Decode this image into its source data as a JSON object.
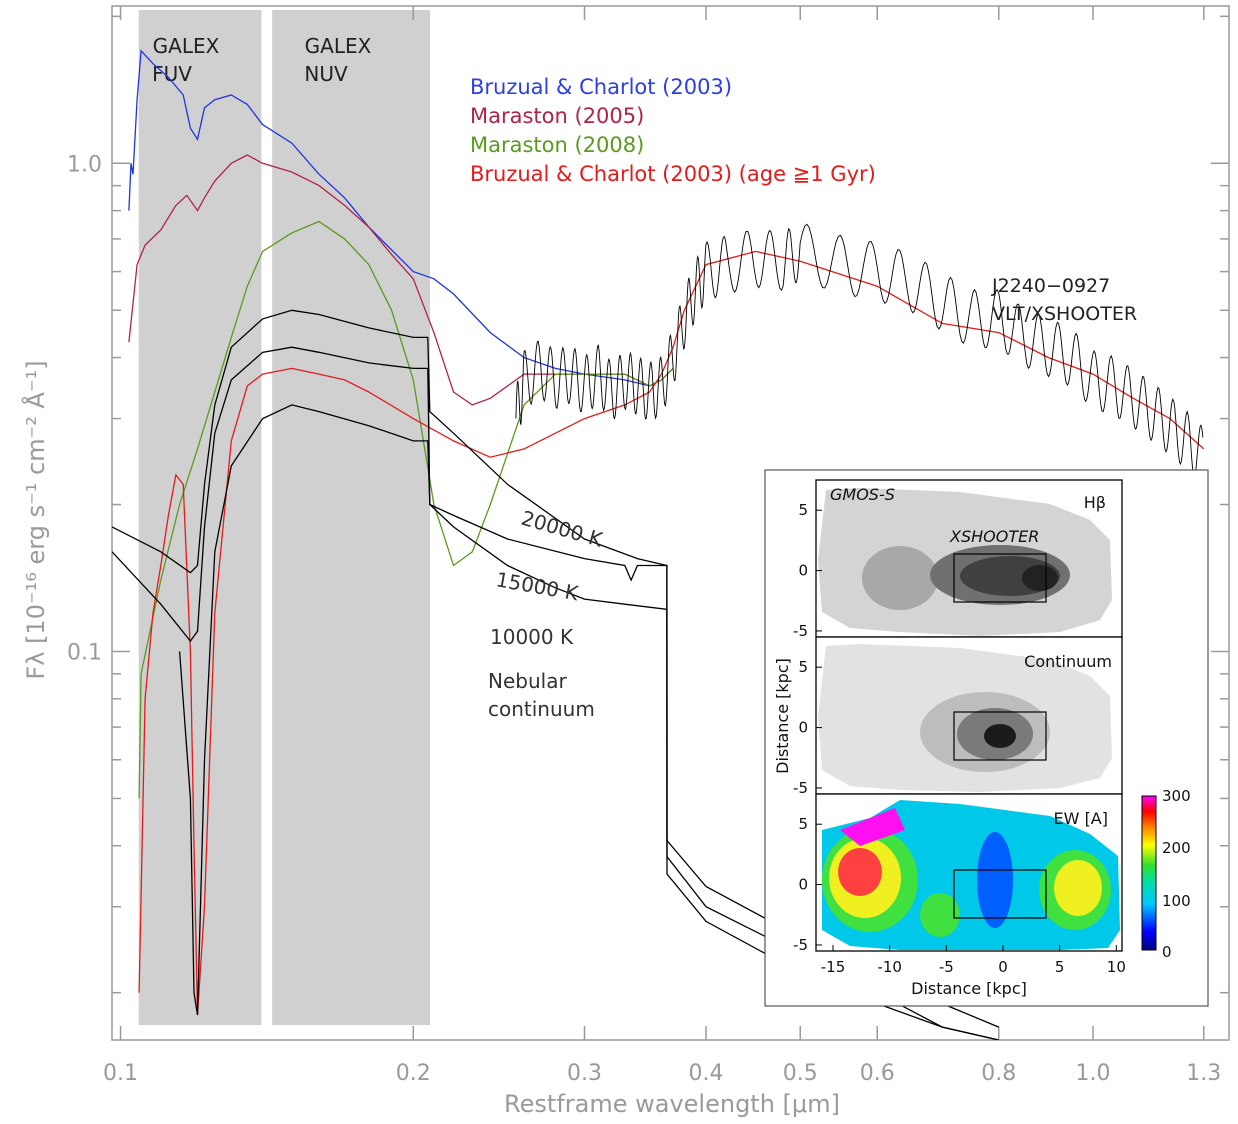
{
  "chart_data": [
    {
      "type": "line",
      "xlabel": "Restframe wavelength [μm]",
      "ylabel": "Fλ [10⁻¹⁶ erg s⁻¹ cm⁻² Å⁻¹]",
      "xscale": "log",
      "yscale": "log",
      "xlim": [
        0.098,
        1.38
      ],
      "ylim": [
        0.016,
        2.1
      ],
      "x_ticks": [
        0.1,
        0.2,
        0.3,
        0.4,
        0.5,
        0.6,
        0.8,
        1.0,
        1.3
      ],
      "x_tick_labels": [
        "0.1",
        "0.2",
        "0.3",
        "0.4",
        "0.5",
        "0.6",
        "0.8",
        "1.0",
        "1.3"
      ],
      "y_ticks": [
        0.1,
        1.0
      ],
      "y_tick_labels": [
        "0.1",
        "1.0"
      ],
      "bands": [
        {
          "label_line1": "GALEX",
          "label_line2": "FUV",
          "x_range": [
            0.1044,
            0.1396
          ],
          "color": "#d0d0d0"
        },
        {
          "label_line1": "GALEX",
          "label_line2": "NUV",
          "x_range": [
            0.1432,
            0.2081
          ],
          "color": "#d0d0d0"
        }
      ],
      "legend_position": "top-center",
      "series": [
        {
          "name": "Bruzual & Charlot (2003)",
          "color": "#1f35e0",
          "x": [
            0.102,
            0.1025,
            0.103,
            0.104,
            0.105,
            0.108,
            0.112,
            0.116,
            0.118,
            0.12,
            0.122,
            0.125,
            0.13,
            0.135,
            0.14,
            0.15,
            0.16,
            0.17,
            0.18,
            0.2,
            0.21,
            0.22,
            0.24,
            0.26,
            0.28,
            0.3,
            0.33,
            0.35,
            0.36,
            0.37
          ],
          "y": [
            0.8,
            1.0,
            0.95,
            1.35,
            1.7,
            1.6,
            1.5,
            1.38,
            1.18,
            1.12,
            1.3,
            1.35,
            1.38,
            1.32,
            1.2,
            1.1,
            0.95,
            0.85,
            0.74,
            0.6,
            0.58,
            0.54,
            0.45,
            0.4,
            0.38,
            0.37,
            0.36,
            0.35,
            0.36,
            0.38
          ]
        },
        {
          "name": "Maraston (2005)",
          "color": "#b0234a",
          "x": [
            0.102,
            0.104,
            0.106,
            0.11,
            0.114,
            0.117,
            0.12,
            0.122,
            0.125,
            0.13,
            0.135,
            0.14,
            0.15,
            0.16,
            0.17,
            0.18,
            0.19,
            0.2,
            0.21,
            0.22,
            0.23,
            0.24,
            0.26,
            0.28,
            0.3,
            0.33,
            0.35,
            0.36,
            0.37
          ],
          "y": [
            0.43,
            0.62,
            0.68,
            0.73,
            0.82,
            0.86,
            0.8,
            0.85,
            0.92,
            1.0,
            1.04,
            1.0,
            0.96,
            0.9,
            0.82,
            0.74,
            0.65,
            0.58,
            0.45,
            0.34,
            0.32,
            0.33,
            0.37,
            0.37,
            0.37,
            0.37,
            0.35,
            0.36,
            0.38
          ]
        },
        {
          "name": "Maraston (2008)",
          "color": "#5a9a1e",
          "x": [
            0.1045,
            0.105,
            0.11,
            0.115,
            0.12,
            0.125,
            0.13,
            0.135,
            0.14,
            0.15,
            0.16,
            0.17,
            0.18,
            0.19,
            0.2,
            0.21,
            0.22,
            0.23,
            0.24,
            0.26,
            0.28,
            0.3,
            0.33,
            0.35,
            0.36,
            0.37
          ],
          "y": [
            0.05,
            0.09,
            0.14,
            0.2,
            0.26,
            0.34,
            0.44,
            0.56,
            0.66,
            0.72,
            0.76,
            0.7,
            0.62,
            0.5,
            0.36,
            0.2,
            0.15,
            0.16,
            0.2,
            0.32,
            0.37,
            0.37,
            0.37,
            0.35,
            0.36,
            0.38
          ]
        },
        {
          "name": "Bruzual & Charlot (2003) (age ≥1 Gyr)",
          "color": "#e51b1b",
          "x": [
            0.1045,
            0.106,
            0.108,
            0.11,
            0.112,
            0.114,
            0.116,
            0.118,
            0.119,
            0.12,
            0.122,
            0.125,
            0.13,
            0.135,
            0.14,
            0.15,
            0.16,
            0.17,
            0.18,
            0.2,
            0.22,
            0.24,
            0.26,
            0.28,
            0.3,
            0.33,
            0.35,
            0.36,
            0.37,
            0.38,
            0.4,
            0.45,
            0.5,
            0.6,
            0.7,
            0.8,
            0.9,
            1.0,
            1.1,
            1.2,
            1.3
          ],
          "y": [
            0.02,
            0.08,
            0.12,
            0.15,
            0.19,
            0.23,
            0.22,
            0.1,
            0.04,
            0.018,
            0.03,
            0.12,
            0.27,
            0.35,
            0.37,
            0.38,
            0.37,
            0.36,
            0.34,
            0.3,
            0.27,
            0.25,
            0.26,
            0.28,
            0.3,
            0.32,
            0.34,
            0.37,
            0.42,
            0.5,
            0.62,
            0.66,
            0.63,
            0.56,
            0.47,
            0.45,
            0.4,
            0.37,
            0.33,
            0.3,
            0.26
          ]
        },
        {
          "name": "J2240−0927 VLT/XSHOOTER",
          "color": "#000000",
          "x": [
            0.255,
            0.26,
            0.27,
            0.28,
            0.29,
            0.3,
            0.31,
            0.32,
            0.33,
            0.34,
            0.35,
            0.36,
            0.37,
            0.38,
            0.39,
            0.4,
            0.42,
            0.45,
            0.48,
            0.5,
            0.55,
            0.6,
            0.65,
            0.7,
            0.75,
            0.8,
            0.85,
            0.9,
            0.95,
            1.0,
            1.05,
            1.1,
            1.15,
            1.2,
            1.25,
            1.3
          ],
          "y": [
            0.3,
            0.36,
            0.38,
            0.36,
            0.37,
            0.35,
            0.37,
            0.34,
            0.36,
            0.35,
            0.34,
            0.35,
            0.4,
            0.48,
            0.55,
            0.6,
            0.62,
            0.64,
            0.63,
            0.66,
            0.62,
            0.6,
            0.57,
            0.52,
            0.48,
            0.48,
            0.44,
            0.42,
            0.4,
            0.36,
            0.35,
            0.33,
            0.31,
            0.29,
            0.27,
            0.25
          ]
        },
        {
          "name": "20000 K",
          "color": "#000000",
          "x": [
            0.098,
            0.11,
            0.118,
            0.12,
            0.122,
            0.125,
            0.13,
            0.14,
            0.15,
            0.16,
            0.18,
            0.2,
            0.207,
            0.208,
            0.22,
            0.25,
            0.3,
            0.34,
            0.3646,
            0.3647,
            0.4,
            0.5,
            0.6,
            0.7,
            0.8
          ],
          "y": [
            0.18,
            0.16,
            0.145,
            0.15,
            0.22,
            0.32,
            0.42,
            0.48,
            0.5,
            0.49,
            0.46,
            0.44,
            0.44,
            0.31,
            0.28,
            0.22,
            0.17,
            0.155,
            0.15,
            0.035,
            0.028,
            0.022,
            0.019,
            0.017,
            0.016
          ]
        },
        {
          "name": "15000 K",
          "color": "#000000",
          "x": [
            0.098,
            0.11,
            0.118,
            0.12,
            0.122,
            0.125,
            0.13,
            0.14,
            0.15,
            0.16,
            0.18,
            0.2,
            0.207,
            0.208,
            0.22,
            0.25,
            0.3,
            0.33,
            0.335,
            0.34,
            0.3646,
            0.3647,
            0.4,
            0.5,
            0.6,
            0.7,
            0.8
          ],
          "y": [
            0.16,
            0.125,
            0.105,
            0.11,
            0.18,
            0.28,
            0.36,
            0.41,
            0.42,
            0.41,
            0.39,
            0.38,
            0.38,
            0.2,
            0.19,
            0.17,
            0.155,
            0.15,
            0.14,
            0.15,
            0.15,
            0.041,
            0.033,
            0.026,
            0.022,
            0.019,
            0.017
          ]
        },
        {
          "name": "10000 K",
          "color": "#000000",
          "x": [
            0.115,
            0.118,
            0.119,
            0.12,
            0.122,
            0.125,
            0.13,
            0.14,
            0.15,
            0.16,
            0.18,
            0.2,
            0.207,
            0.208,
            0.22,
            0.25,
            0.28,
            0.3,
            0.33,
            0.3646,
            0.3647,
            0.4,
            0.5,
            0.6,
            0.7,
            0.8
          ],
          "y": [
            0.1,
            0.05,
            0.02,
            0.018,
            0.06,
            0.16,
            0.24,
            0.3,
            0.32,
            0.31,
            0.29,
            0.27,
            0.27,
            0.2,
            0.18,
            0.15,
            0.135,
            0.128,
            0.125,
            0.122,
            0.038,
            0.03,
            0.024,
            0.02,
            0.017,
            0.016
          ]
        }
      ],
      "annotations": {
        "temp_20000": "20000 K",
        "temp_15000": "15000 K",
        "temp_10000": "10000 K",
        "nebular_line1": "Nebular",
        "nebular_line2": "continuum",
        "target_line1": "J2240−0927",
        "target_line2": "VLT/XSHOOTER"
      }
    },
    {
      "type": "heatmap",
      "xlabel": "Distance [kpc]",
      "ylabel": "Distance [kpc]",
      "xlim": [
        -16.5,
        10.5
      ],
      "ylim": [
        -5.5,
        7.5
      ],
      "x_ticks": [
        -15,
        -10,
        -5,
        0,
        5,
        10
      ],
      "y_ticks": [
        -5,
        0,
        5
      ],
      "slit_box": {
        "x": [
          -4.2,
          3.8
        ],
        "y": [
          -2.4,
          1.8
        ]
      },
      "panels": [
        {
          "name": "Hβ",
          "instrument_label": "GMOS-S",
          "slit_label": "XSHOOTER",
          "colormap": "gray"
        },
        {
          "name": "Continuum",
          "colormap": "gray"
        },
        {
          "name": "EW [A]",
          "colormap": "rainbow",
          "colorbar_ticks": [
            0,
            100,
            200,
            300
          ]
        }
      ]
    }
  ],
  "legend": {
    "entries": [
      {
        "label": "Bruzual & Charlot (2003)",
        "color": "#2c3ee6"
      },
      {
        "label": "Maraston (2005)",
        "color": "#b0234a"
      },
      {
        "label": "Maraston (2008)",
        "color": "#5a9a1e"
      },
      {
        "label": "Bruzual & Charlot (2003) (age ≧1 Gyr)",
        "color": "#e51b1b"
      }
    ]
  },
  "inset": {
    "panel1_title": "Hβ",
    "panel1_instrument": "GMOS-S",
    "panel1_slit": "XSHOOTER",
    "panel2_title": "Continuum",
    "panel3_title": "EW [A]",
    "xlabel": "Distance [kpc]",
    "ylabel": "Distance [kpc]",
    "x_tick_labels": [
      "-15",
      "-10",
      "-5",
      "0",
      "5",
      "10"
    ],
    "y_tick_labels": [
      "5",
      "0",
      "-5"
    ],
    "colorbar_labels": [
      "300",
      "200",
      "100",
      "0"
    ]
  }
}
